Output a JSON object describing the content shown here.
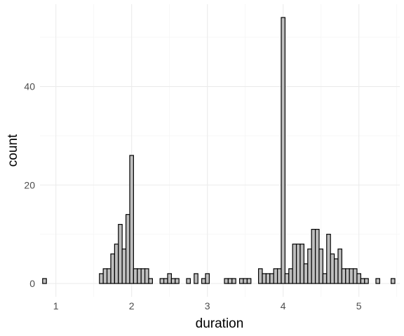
{
  "colors": {
    "background": "#ffffff",
    "grid_major": "#ebebeb",
    "grid_minor": "#f5f5f5",
    "bar_fill": "#bebebe",
    "bar_outline": "#000000",
    "tick_text": "#4d4d4d"
  },
  "chart_data": {
    "type": "bar",
    "subtype": "histogram",
    "title": "",
    "xlabel": "duration",
    "ylabel": "count",
    "xlim": [
      0.79,
      5.54
    ],
    "ylim": [
      -2.7,
      56.7
    ],
    "binwidth": 0.05,
    "x_ticks": [
      1,
      2,
      3,
      4,
      5
    ],
    "x_tick_labels": [
      "1",
      "2",
      "3",
      "4",
      "5"
    ],
    "y_ticks": [
      0,
      20,
      40
    ],
    "y_tick_labels": [
      "0",
      "20",
      "40"
    ],
    "grid": true,
    "legend": "none",
    "bin_centers": [
      0.85,
      0.9,
      0.95,
      1.0,
      1.05,
      1.1,
      1.15,
      1.2,
      1.25,
      1.3,
      1.35,
      1.4,
      1.45,
      1.5,
      1.55,
      1.6,
      1.65,
      1.7,
      1.75,
      1.8,
      1.85,
      1.9,
      1.95,
      2.0,
      2.05,
      2.1,
      2.15,
      2.2,
      2.25,
      2.3,
      2.35,
      2.4,
      2.45,
      2.5,
      2.55,
      2.6,
      2.65,
      2.7,
      2.75,
      2.8,
      2.85,
      2.9,
      2.95,
      3.0,
      3.05,
      3.1,
      3.15,
      3.2,
      3.25,
      3.3,
      3.35,
      3.4,
      3.45,
      3.5,
      3.55,
      3.6,
      3.65,
      3.7,
      3.75,
      3.8,
      3.85,
      3.9,
      3.95,
      4.0,
      4.05,
      4.1,
      4.15,
      4.2,
      4.25,
      4.3,
      4.35,
      4.4,
      4.45,
      4.5,
      4.55,
      4.6,
      4.65,
      4.7,
      4.75,
      4.8,
      4.85,
      4.9,
      4.95,
      5.0,
      5.05,
      5.1,
      5.15,
      5.2,
      5.25,
      5.3,
      5.35,
      5.4,
      5.45
    ],
    "counts": [
      1,
      0,
      0,
      0,
      0,
      0,
      0,
      0,
      0,
      0,
      0,
      0,
      0,
      0,
      0,
      2,
      3,
      3,
      6,
      8,
      12,
      7,
      14,
      26,
      3,
      3,
      3,
      3,
      1,
      0,
      0,
      1,
      1,
      2,
      1,
      1,
      0,
      0,
      1,
      0,
      2,
      0,
      1,
      2,
      0,
      0,
      0,
      0,
      1,
      1,
      1,
      0,
      1,
      1,
      1,
      0,
      0,
      3,
      2,
      2,
      2,
      3,
      3,
      54,
      2,
      3,
      8,
      8,
      8,
      4,
      7,
      11,
      11,
      7,
      2,
      10,
      6,
      5,
      7,
      3,
      3,
      3,
      3,
      2,
      1,
      1,
      0,
      0,
      1,
      0,
      0,
      0,
      1
    ]
  }
}
